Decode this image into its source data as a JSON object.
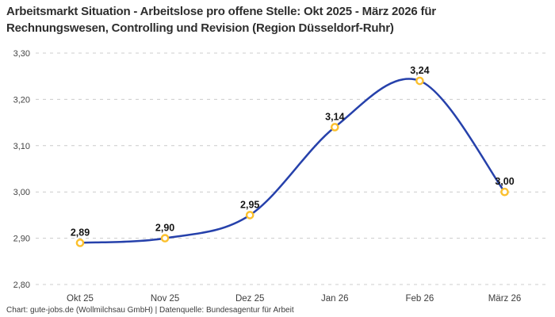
{
  "header": {
    "title_lines": [
      "Arbeitsmarkt Situation - Arbeitslose pro offene Stelle: Okt 2025 - März 2026 für",
      "Rechnungswesen, Controlling und Revision (Region Düsseldorf-Ruhr)"
    ]
  },
  "footer": {
    "credit": "Chart: gute-jobs.de (Wollmilchsau GmbH) | Datenquelle: Bundesagentur für Arbeit"
  },
  "chart_data": {
    "type": "line",
    "title": "Arbeitsmarkt Situation - Arbeitslose pro offene Stelle: Okt 2025 - März 2026 für Rechnungswesen, Controlling und Revision (Region Düsseldorf-Ruhr)",
    "categories": [
      "Okt 25",
      "Nov 25",
      "Dez 25",
      "Jan 26",
      "Feb 26",
      "März 26"
    ],
    "values": [
      2.89,
      2.9,
      2.95,
      3.14,
      3.24,
      3.0
    ],
    "point_labels": [
      "2,89",
      "2,90",
      "2,95",
      "3,14",
      "3,24",
      "3,00"
    ],
    "y_ticks": [
      {
        "value": 3.3,
        "label": "3,30"
      },
      {
        "value": 3.2,
        "label": "3,20"
      },
      {
        "value": 3.1,
        "label": "3,10"
      },
      {
        "value": 3.0,
        "label": "3,00"
      },
      {
        "value": 2.9,
        "label": "2,90"
      },
      {
        "value": 2.8,
        "label": "2,80"
      }
    ],
    "ylim": [
      2.8,
      3.3
    ],
    "xlabel": "",
    "ylabel": "",
    "grid": "horizontal-dashed",
    "legend": "none",
    "line_smoothing": "spline",
    "colors": {
      "line": "#2641ab",
      "marker_stroke": "#fbc02d",
      "marker_fill": "#ffffff",
      "grid": "#cccccc",
      "tick_text": "#444444",
      "point_label_text": "#141414",
      "title_text": "#2e2e2e",
      "background": "#ffffff"
    }
  }
}
